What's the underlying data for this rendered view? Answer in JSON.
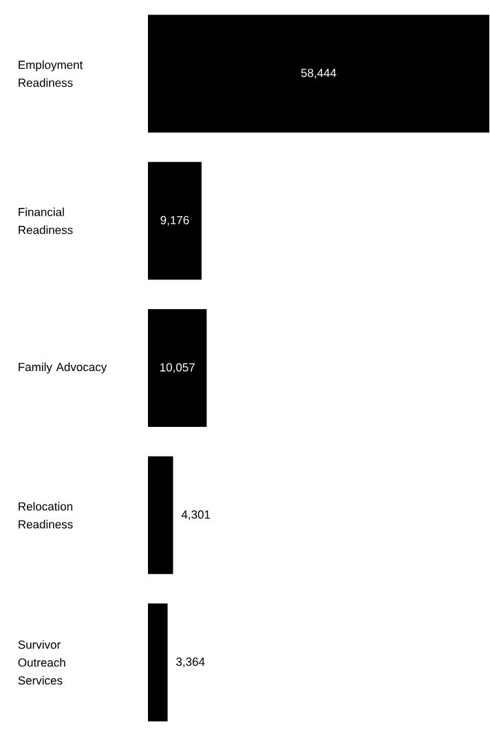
{
  "chart_data": {
    "type": "bar",
    "orientation": "horizontal",
    "categories": [
      "Employment Readiness",
      "Financial Readiness",
      "Family Advocacy",
      "Relocation Readiness",
      "Survivor Outreach Services"
    ],
    "values": [
      58444,
      9176,
      10057,
      4301,
      3364
    ],
    "value_labels": [
      "58,444",
      "9,176",
      "10,057",
      "4,301",
      "3,364"
    ],
    "color": "#000000"
  }
}
